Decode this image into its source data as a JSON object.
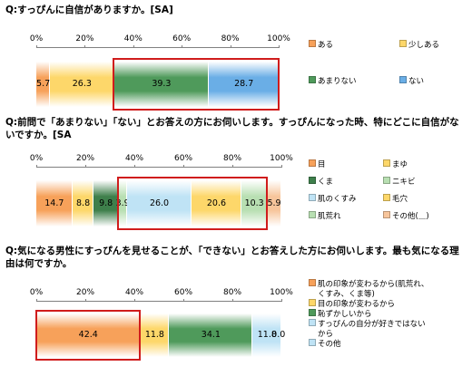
{
  "colors": {
    "orange": "#f7a15a",
    "yellow": "#fdd76a",
    "green": "#4f9a5b",
    "blue": "#6aaee6",
    "lightgreen": "#b8dfb2",
    "lightblue": "#bfe3f5",
    "darkgreen": "#3e7f4b",
    "pink": "#f7c59b",
    "highlight": "#d01c1c"
  },
  "chart_data": [
    {
      "type": "bar",
      "orientation": "horizontal-stacked",
      "title": "Q:すっぴんに自信がありますか。[SA]",
      "axis_ticks": [
        "0%",
        "20%",
        "40%",
        "60%",
        "80%",
        "100%"
      ],
      "xlim": [
        0,
        100
      ],
      "segments": [
        {
          "name": "ある",
          "value": 5.7,
          "label": "5.7",
          "color": "orange"
        },
        {
          "name": "少しある",
          "value": 26.3,
          "label": "26.3",
          "color": "yellow"
        },
        {
          "name": "あまりない",
          "value": 39.3,
          "label": "39.3",
          "color": "green"
        },
        {
          "name": "ない",
          "value": 28.7,
          "label": "28.7",
          "color": "blue"
        }
      ],
      "highlight_range": [
        32.0,
        100.0
      ],
      "legend": [
        {
          "label": "ある",
          "color": "orange"
        },
        {
          "label": "少しある",
          "color": "yellow"
        },
        {
          "label": "あまりない",
          "color": "green"
        },
        {
          "label": "ない",
          "color": "blue"
        }
      ]
    },
    {
      "type": "bar",
      "orientation": "horizontal-stacked",
      "title": "Q:前問で「あまりない」「ない」とお答えの方にお伺いします。すっぴんになった時、特にどこに自信がないですか。[SA",
      "axis_ticks": [
        "0%",
        "20%",
        "40%",
        "60%",
        "80%",
        "100%"
      ],
      "xlim": [
        0,
        100
      ],
      "segments": [
        {
          "name": "目",
          "value": 14.7,
          "label": "14.7",
          "color": "orange"
        },
        {
          "name": "まゆ",
          "value": 8.8,
          "label": "8.8",
          "color": "yellow"
        },
        {
          "name": "くま",
          "value": 9.8,
          "label": "9.8",
          "color": "darkgreen"
        },
        {
          "name": "ニキビ",
          "value": 3.9,
          "label": "3.9",
          "color": "lightgreen"
        },
        {
          "name": "肌のくすみ",
          "value": 26.0,
          "label": "26.0",
          "color": "lightblue"
        },
        {
          "name": "毛穴",
          "value": 20.6,
          "label": "20.6",
          "color": "yellow"
        },
        {
          "name": "肌荒れ",
          "value": 10.3,
          "label": "10.3",
          "color": "lightgreen"
        },
        {
          "name": "その他(＿)",
          "value": 5.9,
          "label": "5.9",
          "color": "pink"
        }
      ],
      "highlight_range": [
        33.3,
        94.1
      ],
      "legend": [
        {
          "label": "目",
          "color": "orange"
        },
        {
          "label": "まゆ",
          "color": "yellow"
        },
        {
          "label": "くま",
          "color": "darkgreen"
        },
        {
          "label": "ニキビ",
          "color": "lightgreen"
        },
        {
          "label": "肌のくすみ",
          "color": "lightblue"
        },
        {
          "label": "毛穴",
          "color": "yellow"
        },
        {
          "label": "肌荒れ",
          "color": "lightgreen"
        },
        {
          "label": "その他(＿)",
          "color": "pink"
        }
      ]
    },
    {
      "type": "bar",
      "orientation": "horizontal-stacked",
      "title": "Q:気になる男性にすっぴんを見せることが、「できない」とお答えした方にお伺いします。最も気になる理由は何ですか。",
      "axis_ticks": [
        "0%",
        "20%",
        "40%",
        "60%",
        "80%",
        "100%"
      ],
      "xlim": [
        0,
        100
      ],
      "segments": [
        {
          "name": "肌の印象が変わるから(肌荒れ、くすみ、くま等)",
          "value": 42.4,
          "label": "42.4",
          "color": "orange"
        },
        {
          "name": "目の印象が変わるから",
          "value": 11.8,
          "label": "11.8",
          "color": "yellow"
        },
        {
          "name": "恥ずかしいから",
          "value": 34.1,
          "label": "34.1",
          "color": "green"
        },
        {
          "name": "すっぴんの自分が好きではないから",
          "value": 11.8,
          "label": "11.8",
          "color": "lightblue"
        },
        {
          "name": "その他",
          "value": 0.0,
          "label": "0.0",
          "color": "lightblue"
        }
      ],
      "highlight_range": [
        0,
        42.4
      ],
      "legend": [
        {
          "label": "肌の印象が変わるから(肌荒れ、",
          "color": "orange"
        },
        {
          "label": "くすみ、くま等)",
          "color": ""
        },
        {
          "label": "目の印象が変わるから",
          "color": "yellow"
        },
        {
          "label": "恥ずかしいから",
          "color": "green"
        },
        {
          "label": "すっぴんの自分が好きではない",
          "color": "lightblue"
        },
        {
          "label": "から",
          "color": ""
        },
        {
          "label": "その他",
          "color": "lightblue"
        }
      ]
    }
  ]
}
